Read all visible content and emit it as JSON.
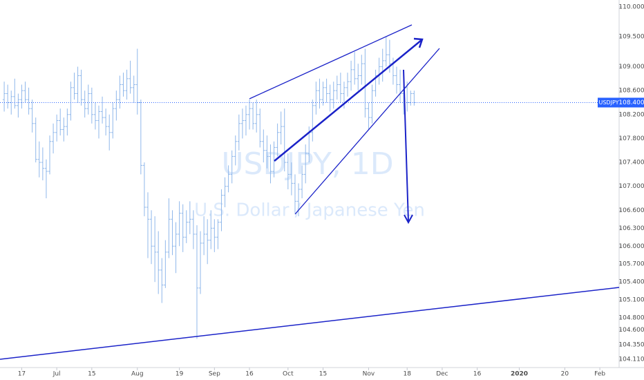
{
  "chart_data": {
    "type": "ohlc",
    "title": "USDJPY, 1D",
    "subtitle": "U.S. Dollar / Japanese Yen",
    "color": "#8fb7ea",
    "x": [
      0,
      1,
      2,
      3,
      4,
      5,
      6,
      7,
      8,
      9,
      10,
      11,
      12,
      13,
      14,
      15,
      16,
      17,
      18,
      19,
      20,
      21,
      22,
      23,
      24,
      25,
      26,
      27,
      28,
      29,
      30,
      31,
      32,
      33,
      34,
      35,
      36,
      37,
      38,
      39,
      40,
      41,
      42,
      43,
      44,
      45,
      46,
      47,
      48,
      49,
      50,
      51,
      52,
      53,
      54,
      55,
      56,
      57,
      58,
      59,
      60,
      61,
      62,
      63,
      64,
      65,
      66,
      67,
      68,
      69,
      70,
      71,
      72,
      73,
      74,
      75,
      76,
      77,
      78,
      79,
      80,
      81,
      82,
      83,
      84,
      85,
      86,
      87,
      88,
      89,
      90,
      91,
      92,
      93,
      94,
      95,
      96,
      97,
      98,
      99,
      100,
      101,
      102,
      103,
      104,
      105,
      106,
      107,
      108,
      109,
      110,
      111,
      112,
      113,
      114,
      115,
      116,
      117
    ],
    "ohlc": [
      [
        108.45,
        108.75,
        108.25,
        108.55
      ],
      [
        108.55,
        108.7,
        108.3,
        108.4
      ],
      [
        108.4,
        108.6,
        108.2,
        108.5
      ],
      [
        108.5,
        108.8,
        108.3,
        108.35
      ],
      [
        108.35,
        108.55,
        108.15,
        108.45
      ],
      [
        108.45,
        108.7,
        108.3,
        108.6
      ],
      [
        108.6,
        108.75,
        108.4,
        108.45
      ],
      [
        108.45,
        108.65,
        108.2,
        108.3
      ],
      [
        108.3,
        108.45,
        107.9,
        108.05
      ],
      [
        108.05,
        108.15,
        107.4,
        107.45
      ],
      [
        107.45,
        107.75,
        107.15,
        107.4
      ],
      [
        107.4,
        107.65,
        107.1,
        107.3
      ],
      [
        107.3,
        107.45,
        106.8,
        107.25
      ],
      [
        107.25,
        107.85,
        107.2,
        107.75
      ],
      [
        107.75,
        108.05,
        107.55,
        107.9
      ],
      [
        107.9,
        108.2,
        107.75,
        108.1
      ],
      [
        108.1,
        108.3,
        107.85,
        107.95
      ],
      [
        107.95,
        108.15,
        107.75,
        108.0
      ],
      [
        108.0,
        108.3,
        107.85,
        108.2
      ],
      [
        108.2,
        108.75,
        108.1,
        108.65
      ],
      [
        108.65,
        108.9,
        108.45,
        108.55
      ],
      [
        108.55,
        109.0,
        108.4,
        108.85
      ],
      [
        108.85,
        108.95,
        108.35,
        108.45
      ],
      [
        108.45,
        108.6,
        108.15,
        108.3
      ],
      [
        108.3,
        108.7,
        108.2,
        108.55
      ],
      [
        108.55,
        108.65,
        108.05,
        108.2
      ],
      [
        108.2,
        108.4,
        107.95,
        108.1
      ],
      [
        108.1,
        108.35,
        107.8,
        108.25
      ],
      [
        108.25,
        108.5,
        108.05,
        108.15
      ],
      [
        108.15,
        108.3,
        107.85,
        108.0
      ],
      [
        108.0,
        108.2,
        107.6,
        107.9
      ],
      [
        107.9,
        108.4,
        107.8,
        108.3
      ],
      [
        108.3,
        108.6,
        108.1,
        108.45
      ],
      [
        108.45,
        108.85,
        108.3,
        108.7
      ],
      [
        108.7,
        108.9,
        108.5,
        108.6
      ],
      [
        108.6,
        108.95,
        108.45,
        108.8
      ],
      [
        108.8,
        109.1,
        108.55,
        108.65
      ],
      [
        108.65,
        108.85,
        108.4,
        108.7
      ],
      [
        108.7,
        109.3,
        108.2,
        108.4
      ],
      [
        108.4,
        108.45,
        107.2,
        107.35
      ],
      [
        107.35,
        107.4,
        106.5,
        106.65
      ],
      [
        106.65,
        106.9,
        105.8,
        106.45
      ],
      [
        106.45,
        106.6,
        105.7,
        106.0
      ],
      [
        106.0,
        106.5,
        105.4,
        105.9
      ],
      [
        105.9,
        106.25,
        105.2,
        105.6
      ],
      [
        105.6,
        105.8,
        105.05,
        105.35
      ],
      [
        105.35,
        106.1,
        105.3,
        105.9
      ],
      [
        105.9,
        106.8,
        105.8,
        106.45
      ],
      [
        106.45,
        106.6,
        105.85,
        106.0
      ],
      [
        106.0,
        106.4,
        105.55,
        106.2
      ],
      [
        106.2,
        106.75,
        106.0,
        106.55
      ],
      [
        106.55,
        106.7,
        105.9,
        106.15
      ],
      [
        106.15,
        106.6,
        106.05,
        106.4
      ],
      [
        106.4,
        106.75,
        106.2,
        106.45
      ],
      [
        106.45,
        106.6,
        105.95,
        106.2
      ],
      [
        106.2,
        106.35,
        104.45,
        105.3
      ],
      [
        105.3,
        106.25,
        105.2,
        106.05
      ],
      [
        106.05,
        106.5,
        105.85,
        106.2
      ],
      [
        106.2,
        106.45,
        105.7,
        106.1
      ],
      [
        106.1,
        106.6,
        105.95,
        106.3
      ],
      [
        106.3,
        106.45,
        105.9,
        106.15
      ],
      [
        106.15,
        106.45,
        105.95,
        106.4
      ],
      [
        106.4,
        106.95,
        106.25,
        106.85
      ],
      [
        106.85,
        107.15,
        106.65,
        107.0
      ],
      [
        107.0,
        107.35,
        106.9,
        107.2
      ],
      [
        107.2,
        107.6,
        107.05,
        107.5
      ],
      [
        107.5,
        107.85,
        107.35,
        107.75
      ],
      [
        107.75,
        108.2,
        107.6,
        108.05
      ],
      [
        108.05,
        108.3,
        107.8,
        108.1
      ],
      [
        108.1,
        108.35,
        107.85,
        108.2
      ],
      [
        108.2,
        108.45,
        107.95,
        108.3
      ],
      [
        108.3,
        108.4,
        107.95,
        108.05
      ],
      [
        108.05,
        108.45,
        107.9,
        108.2
      ],
      [
        108.2,
        108.3,
        107.65,
        107.75
      ],
      [
        107.75,
        107.95,
        107.4,
        107.6
      ],
      [
        107.6,
        107.85,
        107.3,
        107.5
      ],
      [
        107.5,
        107.7,
        107.05,
        107.25
      ],
      [
        107.25,
        107.75,
        107.15,
        107.65
      ],
      [
        107.65,
        108.05,
        107.5,
        107.9
      ],
      [
        107.9,
        108.25,
        107.7,
        108.0
      ],
      [
        108.0,
        108.3,
        107.25,
        107.4
      ],
      [
        107.4,
        107.55,
        106.95,
        107.2
      ],
      [
        107.2,
        107.4,
        106.85,
        107.05
      ],
      [
        107.05,
        107.2,
        106.55,
        106.75
      ],
      [
        106.75,
        107.05,
        106.5,
        106.95
      ],
      [
        106.95,
        107.35,
        106.8,
        107.2
      ],
      [
        107.2,
        107.7,
        107.05,
        107.55
      ],
      [
        107.55,
        108.0,
        107.4,
        107.9
      ],
      [
        107.9,
        108.45,
        107.75,
        108.35
      ],
      [
        108.35,
        108.75,
        108.2,
        108.6
      ],
      [
        108.6,
        108.8,
        108.3,
        108.45
      ],
      [
        108.45,
        108.75,
        108.35,
        108.65
      ],
      [
        108.65,
        108.8,
        108.4,
        108.55
      ],
      [
        108.55,
        108.7,
        108.25,
        108.45
      ],
      [
        108.45,
        108.75,
        108.3,
        108.6
      ],
      [
        108.6,
        108.85,
        108.45,
        108.7
      ],
      [
        108.7,
        108.9,
        108.4,
        108.55
      ],
      [
        108.55,
        108.75,
        108.3,
        108.65
      ],
      [
        108.65,
        108.9,
        108.5,
        108.75
      ],
      [
        108.75,
        109.1,
        108.6,
        108.95
      ],
      [
        108.95,
        109.25,
        108.7,
        108.8
      ],
      [
        108.8,
        109.05,
        108.6,
        108.85
      ],
      [
        108.85,
        109.2,
        108.7,
        109.05
      ],
      [
        109.05,
        109.3,
        108.15,
        108.3
      ],
      [
        108.3,
        108.4,
        107.95,
        108.15
      ],
      [
        108.15,
        108.7,
        108.05,
        108.6
      ],
      [
        108.6,
        108.95,
        108.5,
        108.85
      ],
      [
        108.85,
        109.15,
        108.7,
        109.0
      ],
      [
        109.0,
        109.3,
        108.75,
        109.1
      ],
      [
        109.1,
        109.5,
        109.0,
        109.2
      ],
      [
        109.2,
        109.45,
        108.9,
        109.05
      ],
      [
        109.05,
        109.15,
        108.7,
        108.85
      ],
      [
        108.85,
        109.0,
        108.55,
        108.7
      ],
      [
        108.7,
        108.95,
        108.4,
        108.55
      ],
      [
        108.55,
        108.8,
        108.2,
        108.65
      ],
      [
        108.65,
        108.75,
        108.25,
        108.4
      ],
      [
        108.4,
        108.6,
        108.35,
        108.55
      ],
      [
        108.55,
        108.6,
        108.35,
        108.4
      ]
    ],
    "last": {
      "name": "USDJPY",
      "value": 108.4,
      "value_label": "108.400",
      "color": "#2962ff"
    },
    "xlim": [
      -1.2,
      175.5
    ],
    "ylim": [
      103.97,
      110.115
    ],
    "xticks": [
      {
        "value": 5,
        "label": "17"
      },
      {
        "value": 15,
        "label": "Jul"
      },
      {
        "value": 25,
        "label": "15"
      },
      {
        "value": 38,
        "label": "Aug"
      },
      {
        "value": 50,
        "label": "19"
      },
      {
        "value": 60,
        "label": "Sep"
      },
      {
        "value": 70,
        "label": "16"
      },
      {
        "value": 81,
        "label": "Oct"
      },
      {
        "value": 91,
        "label": "15"
      },
      {
        "value": 104,
        "label": "Nov"
      },
      {
        "value": 115,
        "label": "18"
      },
      {
        "value": 125,
        "label": "Dec"
      },
      {
        "value": 135,
        "label": "16"
      },
      {
        "value": 147,
        "label": "2020"
      },
      {
        "value": 160,
        "label": "20"
      },
      {
        "value": 170,
        "label": "Feb"
      }
    ],
    "yticks": [
      {
        "value": 110,
        "label": "110.000"
      },
      {
        "value": 109.5,
        "label": "109.500"
      },
      {
        "value": 109,
        "label": "109.000"
      },
      {
        "value": 108.6,
        "label": "108.600"
      },
      {
        "value": 108.2,
        "label": "108.200"
      },
      {
        "value": 107.8,
        "label": "107.800"
      },
      {
        "value": 107.4,
        "label": "107.400"
      },
      {
        "value": 107,
        "label": "107.000"
      },
      {
        "value": 106.6,
        "label": "106.600"
      },
      {
        "value": 106.3,
        "label": "106.300"
      },
      {
        "value": 106,
        "label": "106.000"
      },
      {
        "value": 105.7,
        "label": "105.700"
      },
      {
        "value": 105.4,
        "label": "105.400"
      },
      {
        "value": 105.1,
        "label": "105.100"
      },
      {
        "value": 104.8,
        "label": "104.800"
      },
      {
        "value": 104.6,
        "label": "104.600"
      },
      {
        "value": 104.35,
        "label": "104.350"
      },
      {
        "value": 104.11,
        "label": "104.110"
      }
    ],
    "grid": false
  }
}
